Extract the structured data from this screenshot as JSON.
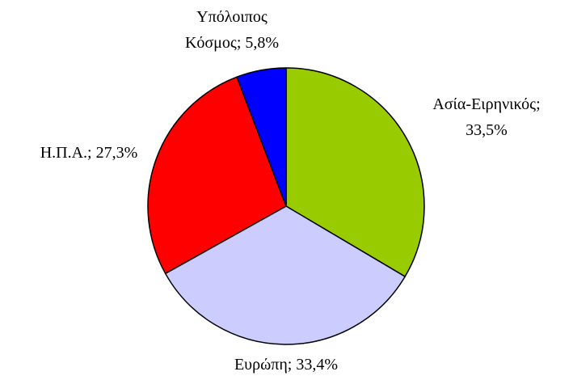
{
  "chart_data": {
    "type": "pie",
    "values": [
      33.5,
      33.4,
      27.3,
      5.8
    ],
    "value_labels": [
      "Ασία-Ειρηνικός;\n33,5%",
      "Ευρώπη; 33,4%",
      "Η.Π.Α.; 27,3%",
      "Υπόλοιπος\nΚόσμος; 5,8%"
    ],
    "colors": [
      "#99cc00",
      "#ccccff",
      "#ff0000",
      "#0000ff"
    ]
  }
}
